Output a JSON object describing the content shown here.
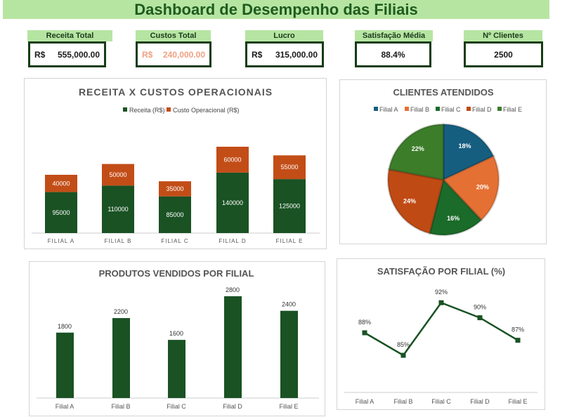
{
  "title": "Dashboard de Desempenho das Filiais",
  "kpis": {
    "receita": {
      "label": "Receita Total",
      "currency": "R$",
      "value": "555,000.00"
    },
    "custos": {
      "label": "Custos Total",
      "currency": "R$",
      "value": "240,000.00"
    },
    "lucro": {
      "label": "Lucro",
      "currency": "R$",
      "value": "315,000.00"
    },
    "satisfacao": {
      "label": "Satisfação Média",
      "value": "88.4%"
    },
    "clientes": {
      "label": "Nº Clientes Atendidos",
      "value": "2500"
    }
  },
  "chart_data": [
    {
      "type": "bar",
      "stacked": true,
      "title": "RECEITA X CUSTOS OPERACIONAIS",
      "categories": [
        "FILIAL A",
        "FILIAL B",
        "FILIAL C",
        "FILIAL D",
        "FILIAL E"
      ],
      "series": [
        {
          "name": "Receita (R$)",
          "color": "#1a5224",
          "values": [
            95000,
            110000,
            85000,
            140000,
            125000
          ]
        },
        {
          "name": "Custo Operacional (R$)",
          "color": "#c24d17",
          "values": [
            40000,
            50000,
            35000,
            60000,
            55000
          ]
        }
      ],
      "legend": "top"
    },
    {
      "type": "pie",
      "title": "CLIENTES ATENDIDOS",
      "categories": [
        "Filial A",
        "Filial B",
        "Filial C",
        "Filial D",
        "Filial E"
      ],
      "values": [
        18,
        20,
        16,
        24,
        22
      ],
      "labels": [
        "18%",
        "20%",
        "16%",
        "24%",
        "22%"
      ],
      "colors": [
        "#165e80",
        "#e57034",
        "#1b6b2a",
        "#c04a14",
        "#3c7d2a"
      ],
      "legend": "top"
    },
    {
      "type": "bar",
      "title": "PRODUTOS VENDIDOS POR FILIAL",
      "categories": [
        "Filial A",
        "Filial B",
        "Filial C",
        "Filial D",
        "Filial E"
      ],
      "values": [
        1800,
        2200,
        1600,
        2800,
        2400
      ],
      "color": "#1a5224"
    },
    {
      "type": "line",
      "title": "SATISFAÇÃO POR FILIAL (%)",
      "categories": [
        "Filial A",
        "Filial B",
        "Filial C",
        "Filial D",
        "Filial E"
      ],
      "values": [
        88,
        85,
        92,
        90,
        87
      ],
      "labels": [
        "88%",
        "85%",
        "92%",
        "90%",
        "87%"
      ],
      "color": "#1a5224"
    }
  ]
}
